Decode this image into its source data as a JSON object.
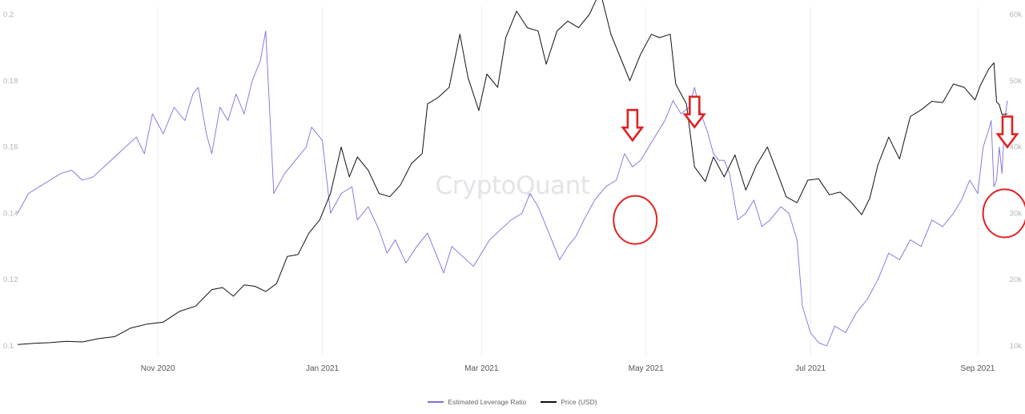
{
  "chart_data": {
    "type": "line",
    "title": "",
    "watermark": "CryptoQuant",
    "x_ticks": [
      "Nov 2020",
      "Jan 2021",
      "Mar 2021",
      "May 2021",
      "Jul 2021",
      "Sep 2021"
    ],
    "x_tick_dates": [
      "2020-11-01",
      "2021-01-01",
      "2021-03-01",
      "2021-05-01",
      "2021-07-01",
      "2021-09-01"
    ],
    "x_range": [
      "2020-09-10",
      "2021-09-12"
    ],
    "y_left": {
      "ticks": [
        "0.1",
        "0.12",
        "0.14",
        "0.16",
        "0.18",
        "0.2"
      ],
      "ylim": [
        0.1,
        0.2
      ]
    },
    "y_right": {
      "ticks": [
        "10k",
        "20k",
        "30k",
        "40k",
        "50k",
        "60k"
      ],
      "ylim": [
        10000,
        60000
      ]
    },
    "grid": "vertical",
    "legend_position": "bottom-center",
    "series": [
      {
        "name": "Estimated Leverage Ratio",
        "axis": "left",
        "color": "#7b6fe0",
        "points": [
          [
            "2020-09-10",
            0.14
          ],
          [
            "2020-09-14",
            0.146
          ],
          [
            "2020-09-18",
            0.148
          ],
          [
            "2020-09-22",
            0.15
          ],
          [
            "2020-09-26",
            0.152
          ],
          [
            "2020-09-30",
            0.153
          ],
          [
            "2020-10-04",
            0.15
          ],
          [
            "2020-10-08",
            0.151
          ],
          [
            "2020-10-12",
            0.154
          ],
          [
            "2020-10-16",
            0.157
          ],
          [
            "2020-10-20",
            0.16
          ],
          [
            "2020-10-24",
            0.163
          ],
          [
            "2020-10-27",
            0.158
          ],
          [
            "2020-10-30",
            0.17
          ],
          [
            "2020-11-03",
            0.164
          ],
          [
            "2020-11-07",
            0.172
          ],
          [
            "2020-11-11",
            0.168
          ],
          [
            "2020-11-14",
            0.176
          ],
          [
            "2020-11-16",
            0.178
          ],
          [
            "2020-11-19",
            0.164
          ],
          [
            "2020-11-21",
            0.158
          ],
          [
            "2020-11-24",
            0.172
          ],
          [
            "2020-11-27",
            0.168
          ],
          [
            "2020-11-30",
            0.176
          ],
          [
            "2020-12-03",
            0.17
          ],
          [
            "2020-12-06",
            0.18
          ],
          [
            "2020-12-09",
            0.186
          ],
          [
            "2020-12-11",
            0.195
          ],
          [
            "2020-12-14",
            0.146
          ],
          [
            "2020-12-18",
            0.152
          ],
          [
            "2020-12-22",
            0.156
          ],
          [
            "2020-12-26",
            0.16
          ],
          [
            "2020-12-28",
            0.166
          ],
          [
            "2021-01-01",
            0.162
          ],
          [
            "2021-01-04",
            0.14
          ],
          [
            "2021-01-08",
            0.146
          ],
          [
            "2021-01-12",
            0.148
          ],
          [
            "2021-01-14",
            0.138
          ],
          [
            "2021-01-18",
            0.142
          ],
          [
            "2021-01-22",
            0.135
          ],
          [
            "2021-01-25",
            0.128
          ],
          [
            "2021-01-28",
            0.132
          ],
          [
            "2021-02-01",
            0.125
          ],
          [
            "2021-02-05",
            0.13
          ],
          [
            "2021-02-09",
            0.134
          ],
          [
            "2021-02-12",
            0.128
          ],
          [
            "2021-02-15",
            0.122
          ],
          [
            "2021-02-18",
            0.13
          ],
          [
            "2021-02-22",
            0.127
          ],
          [
            "2021-02-26",
            0.124
          ],
          [
            "2021-03-01",
            0.128
          ],
          [
            "2021-03-04",
            0.132
          ],
          [
            "2021-03-08",
            0.135
          ],
          [
            "2021-03-12",
            0.138
          ],
          [
            "2021-03-16",
            0.14
          ],
          [
            "2021-03-19",
            0.146
          ],
          [
            "2021-03-22",
            0.142
          ],
          [
            "2021-03-26",
            0.134
          ],
          [
            "2021-03-30",
            0.126
          ],
          [
            "2021-04-02",
            0.13
          ],
          [
            "2021-04-05",
            0.133
          ],
          [
            "2021-04-08",
            0.138
          ],
          [
            "2021-04-12",
            0.144
          ],
          [
            "2021-04-16",
            0.148
          ],
          [
            "2021-04-20",
            0.15
          ],
          [
            "2021-04-23",
            0.158
          ],
          [
            "2021-04-26",
            0.154
          ],
          [
            "2021-04-29",
            0.156
          ],
          [
            "2021-05-02",
            0.16
          ],
          [
            "2021-05-05",
            0.164
          ],
          [
            "2021-05-08",
            0.168
          ],
          [
            "2021-05-11",
            0.174
          ],
          [
            "2021-05-14",
            0.17
          ],
          [
            "2021-05-17",
            0.172
          ],
          [
            "2021-05-19",
            0.178
          ],
          [
            "2021-05-21",
            0.171
          ],
          [
            "2021-05-24",
            0.164
          ],
          [
            "2021-05-26",
            0.158
          ],
          [
            "2021-05-28",
            0.156
          ],
          [
            "2021-05-30",
            0.156
          ],
          [
            "2021-06-01",
            0.152
          ],
          [
            "2021-06-04",
            0.138
          ],
          [
            "2021-06-07",
            0.14
          ],
          [
            "2021-06-10",
            0.144
          ],
          [
            "2021-06-13",
            0.136
          ],
          [
            "2021-06-16",
            0.138
          ],
          [
            "2021-06-20",
            0.142
          ],
          [
            "2021-06-23",
            0.14
          ],
          [
            "2021-06-26",
            0.132
          ],
          [
            "2021-06-28",
            0.112
          ],
          [
            "2021-07-01",
            0.104
          ],
          [
            "2021-07-04",
            0.101
          ],
          [
            "2021-07-07",
            0.1
          ],
          [
            "2021-07-10",
            0.106
          ],
          [
            "2021-07-14",
            0.104
          ],
          [
            "2021-07-18",
            0.11
          ],
          [
            "2021-07-22",
            0.114
          ],
          [
            "2021-07-26",
            0.12
          ],
          [
            "2021-07-30",
            0.128
          ],
          [
            "2021-08-03",
            0.126
          ],
          [
            "2021-08-07",
            0.132
          ],
          [
            "2021-08-11",
            0.13
          ],
          [
            "2021-08-15",
            0.138
          ],
          [
            "2021-08-19",
            0.136
          ],
          [
            "2021-08-23",
            0.14
          ],
          [
            "2021-08-26",
            0.144
          ],
          [
            "2021-08-29",
            0.15
          ],
          [
            "2021-09-01",
            0.146
          ],
          [
            "2021-09-03",
            0.16
          ],
          [
            "2021-09-05",
            0.165
          ],
          [
            "2021-09-06",
            0.168
          ],
          [
            "2021-09-07",
            0.148
          ],
          [
            "2021-09-08",
            0.15
          ],
          [
            "2021-09-09",
            0.16
          ],
          [
            "2021-09-10",
            0.152
          ],
          [
            "2021-09-11",
            0.168
          ],
          [
            "2021-09-12",
            0.174
          ]
        ]
      },
      {
        "name": "Price (USD)",
        "axis": "right",
        "color": "#111111",
        "points": [
          [
            "2020-09-10",
            10200
          ],
          [
            "2020-09-16",
            10400
          ],
          [
            "2020-09-22",
            10500
          ],
          [
            "2020-09-28",
            10700
          ],
          [
            "2020-10-04",
            10600
          ],
          [
            "2020-10-10",
            11100
          ],
          [
            "2020-10-16",
            11400
          ],
          [
            "2020-10-22",
            12700
          ],
          [
            "2020-10-28",
            13300
          ],
          [
            "2020-11-03",
            13600
          ],
          [
            "2020-11-09",
            15200
          ],
          [
            "2020-11-15",
            16000
          ],
          [
            "2020-11-21",
            18500
          ],
          [
            "2020-11-25",
            18800
          ],
          [
            "2020-11-29",
            17500
          ],
          [
            "2020-12-03",
            19200
          ],
          [
            "2020-12-07",
            19000
          ],
          [
            "2020-12-11",
            18200
          ],
          [
            "2020-12-15",
            19400
          ],
          [
            "2020-12-19",
            23500
          ],
          [
            "2020-12-23",
            23800
          ],
          [
            "2020-12-27",
            27000
          ],
          [
            "2020-12-31",
            29000
          ],
          [
            "2021-01-04",
            33000
          ],
          [
            "2021-01-08",
            40000
          ],
          [
            "2021-01-11",
            35500
          ],
          [
            "2021-01-14",
            38500
          ],
          [
            "2021-01-18",
            36500
          ],
          [
            "2021-01-22",
            33000
          ],
          [
            "2021-01-26",
            32500
          ],
          [
            "2021-01-30",
            34300
          ],
          [
            "2021-02-03",
            37500
          ],
          [
            "2021-02-07",
            39000
          ],
          [
            "2021-02-09",
            46500
          ],
          [
            "2021-02-13",
            47500
          ],
          [
            "2021-02-17",
            49000
          ],
          [
            "2021-02-21",
            57000
          ],
          [
            "2021-02-24",
            50500
          ],
          [
            "2021-02-28",
            45500
          ],
          [
            "2021-03-03",
            51000
          ],
          [
            "2021-03-07",
            49000
          ],
          [
            "2021-03-10",
            56500
          ],
          [
            "2021-03-14",
            60500
          ],
          [
            "2021-03-18",
            58000
          ],
          [
            "2021-03-22",
            57500
          ],
          [
            "2021-03-25",
            52500
          ],
          [
            "2021-03-29",
            57500
          ],
          [
            "2021-04-02",
            59000
          ],
          [
            "2021-04-06",
            58000
          ],
          [
            "2021-04-10",
            60000
          ],
          [
            "2021-04-14",
            63500
          ],
          [
            "2021-04-18",
            57000
          ],
          [
            "2021-04-22",
            53000
          ],
          [
            "2021-04-25",
            50000
          ],
          [
            "2021-04-29",
            54000
          ],
          [
            "2021-05-03",
            57000
          ],
          [
            "2021-05-06",
            56500
          ],
          [
            "2021-05-10",
            57000
          ],
          [
            "2021-05-12",
            49500
          ],
          [
            "2021-05-16",
            46500
          ],
          [
            "2021-05-19",
            37000
          ],
          [
            "2021-05-23",
            34800
          ],
          [
            "2021-05-26",
            38500
          ],
          [
            "2021-05-30",
            35500
          ],
          [
            "2021-06-03",
            38800
          ],
          [
            "2021-06-07",
            33500
          ],
          [
            "2021-06-11",
            37300
          ],
          [
            "2021-06-15",
            40000
          ],
          [
            "2021-06-19",
            35800
          ],
          [
            "2021-06-22",
            32500
          ],
          [
            "2021-06-26",
            31600
          ],
          [
            "2021-06-30",
            35000
          ],
          [
            "2021-07-04",
            35200
          ],
          [
            "2021-07-08",
            32800
          ],
          [
            "2021-07-12",
            33200
          ],
          [
            "2021-07-16",
            31700
          ],
          [
            "2021-07-20",
            29800
          ],
          [
            "2021-07-23",
            32300
          ],
          [
            "2021-07-26",
            37300
          ],
          [
            "2021-07-30",
            41500
          ],
          [
            "2021-08-03",
            38200
          ],
          [
            "2021-08-07",
            44600
          ],
          [
            "2021-08-11",
            45600
          ],
          [
            "2021-08-15",
            46900
          ],
          [
            "2021-08-19",
            46700
          ],
          [
            "2021-08-23",
            49500
          ],
          [
            "2021-08-27",
            49000
          ],
          [
            "2021-08-31",
            47100
          ],
          [
            "2021-09-02",
            49300
          ],
          [
            "2021-09-05",
            51700
          ],
          [
            "2021-09-07",
            52700
          ],
          [
            "2021-09-08",
            46800
          ],
          [
            "2021-09-09",
            46400
          ],
          [
            "2021-09-10",
            44900
          ],
          [
            "2021-09-12",
            45000
          ]
        ]
      }
    ],
    "annotations": [
      {
        "type": "arrow-down",
        "date": "2021-04-26",
        "value": 0.162,
        "axis": "left",
        "color": "#e02222"
      },
      {
        "type": "circle",
        "date": "2021-04-27",
        "value": 0.138,
        "axis": "left",
        "color": "#e02222"
      },
      {
        "type": "arrow-down",
        "date": "2021-05-19",
        "value": 0.166,
        "axis": "left",
        "color": "#e02222"
      },
      {
        "type": "arrow-down",
        "date": "2021-09-12",
        "value": 0.16,
        "axis": "left",
        "color": "#e02222"
      },
      {
        "type": "circle",
        "date": "2021-09-11",
        "value": 0.14,
        "axis": "left",
        "color": "#e02222"
      }
    ],
    "colors": {
      "annotation": "#e02222",
      "grid": "#efefef"
    }
  }
}
